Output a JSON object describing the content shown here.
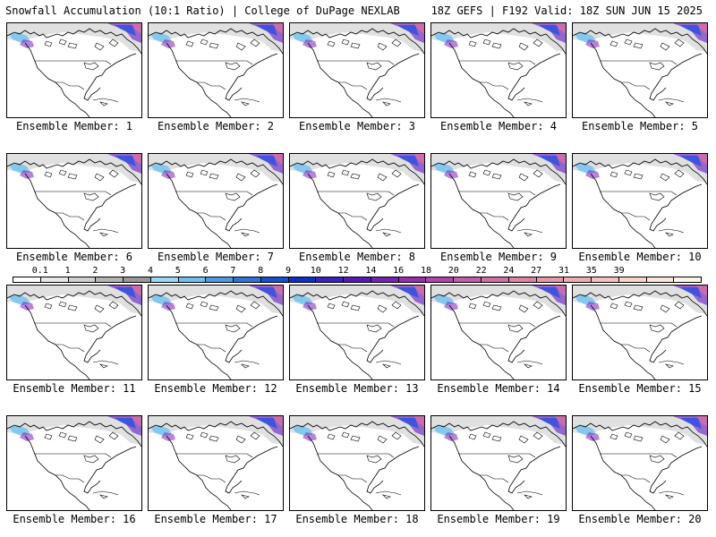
{
  "header": {
    "left": "Snowfall Accumulation (10:1 Ratio) | College of DuPage NEXLAB",
    "right": "18Z GEFS | F192 Valid: 18Z SUN JUN 15 2025"
  },
  "colorbar": {
    "labels": [
      "0.1",
      "1",
      "2",
      "3",
      "4",
      "5",
      "6",
      "7",
      "8",
      "9",
      "10",
      "12",
      "14",
      "16",
      "18",
      "20",
      "22",
      "24",
      "27",
      "31",
      "35",
      "39"
    ],
    "colors": [
      "#ffffff",
      "#e6e6e6",
      "#d0d0d0",
      "#b4b4b4",
      "#999999",
      "#9ad9f5",
      "#6fc1ef",
      "#4c9be8",
      "#2d74e0",
      "#1550d6",
      "#0a2fd0",
      "#3b1fc8",
      "#5a17bf",
      "#7a1fb8",
      "#9a2cb3",
      "#b540b0",
      "#c75aab",
      "#d46fa6",
      "#df83a4",
      "#e797a8",
      "#eeadb2",
      "#f3c2bd",
      "#f7d5c8",
      "#fae5d6",
      "#fdf2e8"
    ]
  },
  "members": [
    {
      "label": "Ensemble Member: 1"
    },
    {
      "label": "Ensemble Member: 2"
    },
    {
      "label": "Ensemble Member: 3"
    },
    {
      "label": "Ensemble Member: 4"
    },
    {
      "label": "Ensemble Member: 5"
    },
    {
      "label": "Ensemble Member: 6"
    },
    {
      "label": "Ensemble Member: 7"
    },
    {
      "label": "Ensemble Member: 8"
    },
    {
      "label": "Ensemble Member: 9"
    },
    {
      "label": "Ensemble Member: 10"
    },
    {
      "label": "Ensemble Member: 11"
    },
    {
      "label": "Ensemble Member: 12"
    },
    {
      "label": "Ensemble Member: 13"
    },
    {
      "label": "Ensemble Member: 14"
    },
    {
      "label": "Ensemble Member: 15"
    },
    {
      "label": "Ensemble Member: 16"
    },
    {
      "label": "Ensemble Member: 17"
    },
    {
      "label": "Ensemble Member: 18"
    },
    {
      "label": "Ensemble Member: 19"
    },
    {
      "label": "Ensemble Member: 20"
    }
  ]
}
